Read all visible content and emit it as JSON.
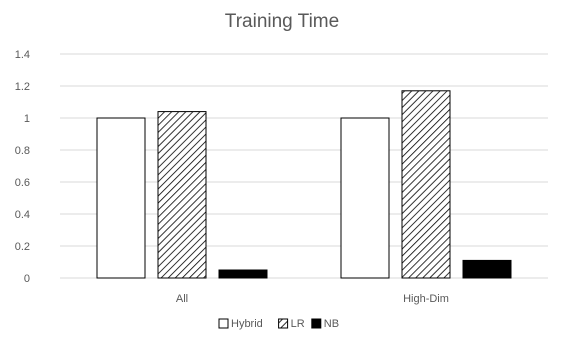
{
  "chart_data": {
    "type": "bar",
    "title": "Training Time",
    "xlabel": "",
    "ylabel": "",
    "categories": [
      "All",
      "High-Dim"
    ],
    "series": [
      {
        "name": "Hybrid",
        "values": [
          1.0,
          1.0
        ],
        "fill": "white"
      },
      {
        "name": "LR",
        "values": [
          1.04,
          1.17
        ],
        "fill": "hatch"
      },
      {
        "name": "NB",
        "values": [
          0.05,
          0.11
        ],
        "fill": "black"
      }
    ],
    "ylim": [
      0,
      1.4
    ],
    "yticks": [
      "0",
      "0.2",
      "0.4",
      "0.6",
      "0.8",
      "1",
      "1.2",
      "1.4"
    ],
    "grid": true,
    "legend": "bottom",
    "colors": {
      "gridline": "#d9d9d9",
      "bar_outline": "#000000",
      "nb_fill": "#000000",
      "text": "#595959"
    }
  }
}
